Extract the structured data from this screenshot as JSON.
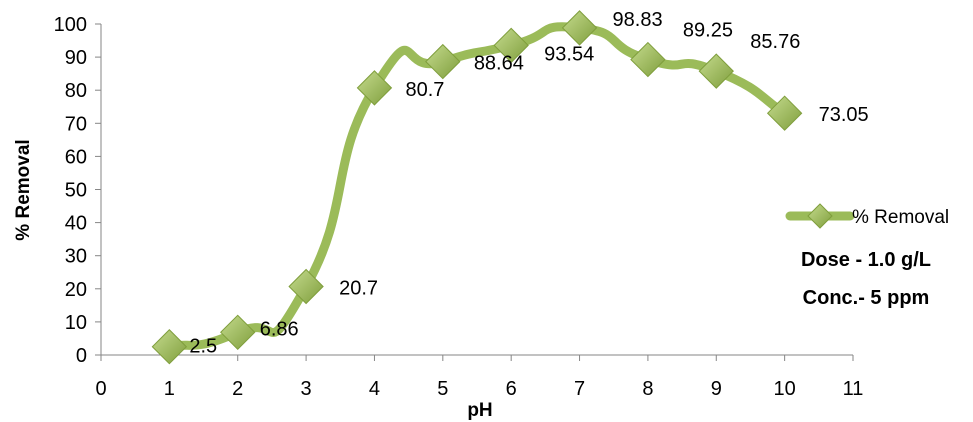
{
  "chart_data": {
    "type": "line",
    "x": [
      1,
      2,
      3,
      4,
      5,
      6,
      7,
      8,
      9,
      10
    ],
    "series": [
      {
        "name": "% Removal",
        "values": [
          2.5,
          6.86,
          20.7,
          80.7,
          88.64,
          93.54,
          98.83,
          89.25,
          85.76,
          73.05
        ]
      }
    ],
    "data_labels": [
      "2.5",
      "6.86",
      "20.7",
      "80.7",
      "88.64",
      "93.54",
      "98.83",
      "89.25",
      "85.76",
      "73.05"
    ],
    "xlabel": "pH",
    "ylabel": "% Removal",
    "xlim": [
      0,
      11
    ],
    "ylim": [
      0,
      100
    ],
    "x_ticks": [
      0,
      1,
      2,
      3,
      4,
      5,
      6,
      7,
      8,
      9,
      10,
      11
    ],
    "y_ticks": [
      0,
      10,
      20,
      30,
      40,
      50,
      60,
      70,
      80,
      90,
      100
    ],
    "grid": false,
    "smooth": true,
    "marker": "diamond",
    "line_color": "#9BBB59",
    "marker_color": "#9BBB59",
    "legend_position": "right",
    "annotations": [
      "Dose - 1.0 g/L",
      "Conc.- 5 ppm"
    ]
  }
}
